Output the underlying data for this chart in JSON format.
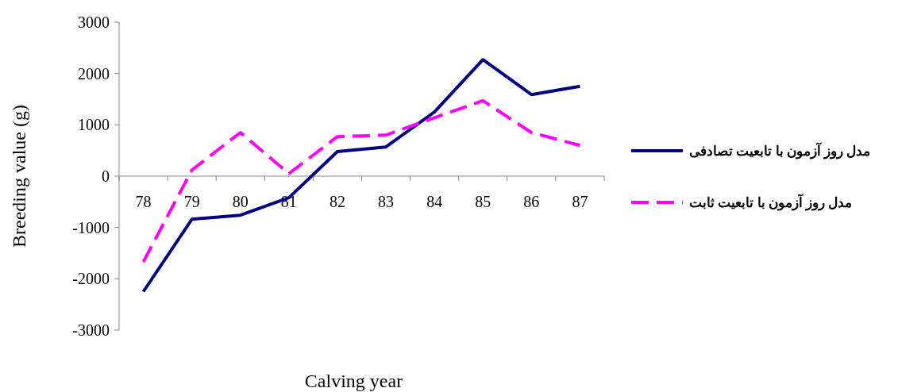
{
  "chart_data": {
    "type": "line",
    "xlabel": "Calving year",
    "ylabel": "Breeding value (g)",
    "categories": [
      "78",
      "79",
      "80",
      "81",
      "82",
      "83",
      "84",
      "85",
      "86",
      "87"
    ],
    "series": [
      {
        "name": "مدل روز آزمون با تابعیت تصادفی",
        "color": "#000080",
        "line_style": "solid",
        "values": [
          -2250,
          -840,
          -760,
          -420,
          480,
          570,
          1250,
          2270,
          1590,
          1750
        ]
      },
      {
        "name": "مدل روز آزمون با تابعیت ثابت",
        "color": "#ff00ff",
        "line_style": "dashed",
        "values": [
          -1670,
          120,
          850,
          50,
          770,
          800,
          1140,
          1470,
          850,
          600
        ]
      }
    ],
    "ylim": [
      -3000,
      3000
    ],
    "yticks": [
      -3000,
      -2000,
      -1000,
      0,
      1000,
      2000,
      3000
    ],
    "grid": false,
    "legend": "right",
    "marker": "none"
  }
}
